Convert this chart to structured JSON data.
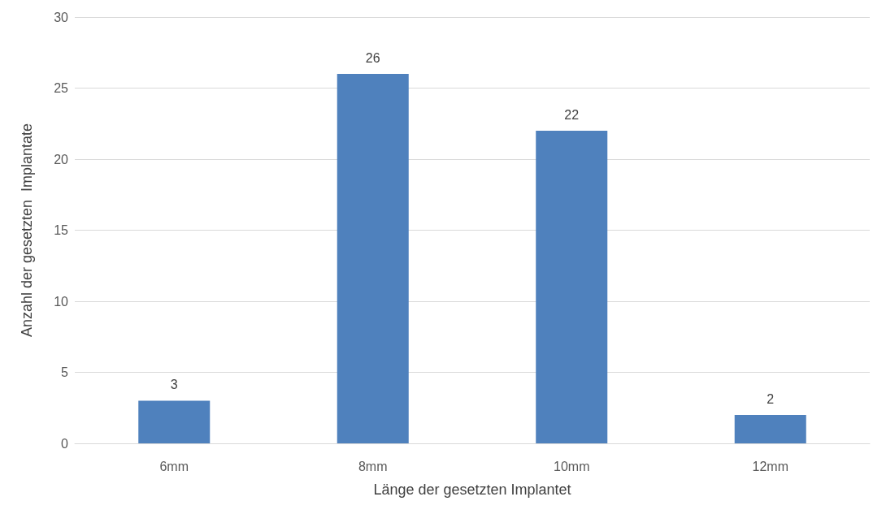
{
  "chart_data": {
    "type": "bar",
    "xlabel": "Länge der gesetzten Implantet",
    "ylabel": "Anzahl der gesetzten  Implantate",
    "categories": [
      "6mm",
      "8mm",
      "10mm",
      "12mm"
    ],
    "values": [
      3,
      26,
      22,
      2
    ],
    "color": "#4f81bd",
    "ylim": [
      0,
      30
    ],
    "yticks": [
      0,
      5,
      10,
      15,
      20,
      25,
      30
    ],
    "grid": "y",
    "data_labels": true
  }
}
